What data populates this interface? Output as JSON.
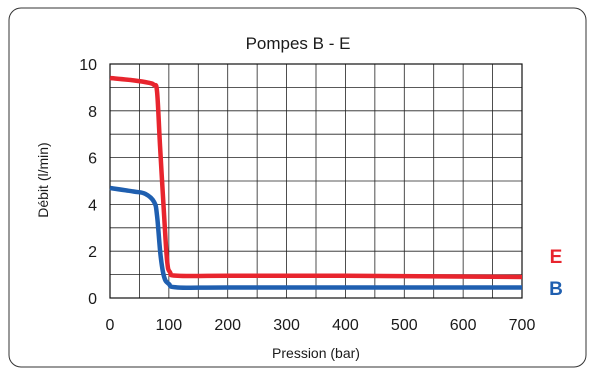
{
  "chart_data": {
    "type": "line",
    "title": "Pompes B - E",
    "xlabel": "Pression (bar)",
    "ylabel": "Débit (l/min)",
    "xlim": [
      0,
      700
    ],
    "ylim": [
      0,
      10
    ],
    "x_ticks": [
      "0",
      "100",
      "200",
      "300",
      "400",
      "500",
      "600",
      "700"
    ],
    "y_ticks": [
      "0",
      "2",
      "4",
      "6",
      "8",
      "10"
    ],
    "grid": true,
    "series": [
      {
        "name": "E",
        "color": "#e8252e",
        "points": [
          [
            0,
            9.4
          ],
          [
            40,
            9.3
          ],
          [
            65,
            9.2
          ],
          [
            75,
            9.1
          ],
          [
            80,
            8.8
          ],
          [
            85,
            6.5
          ],
          [
            92,
            3.5
          ],
          [
            97,
            1.6
          ],
          [
            102,
            1.1
          ],
          [
            115,
            0.95
          ],
          [
            200,
            0.95
          ],
          [
            400,
            0.95
          ],
          [
            700,
            0.9
          ]
        ]
      },
      {
        "name": "B",
        "color": "#1f5fb0",
        "points": [
          [
            0,
            4.7
          ],
          [
            40,
            4.55
          ],
          [
            60,
            4.45
          ],
          [
            75,
            4.1
          ],
          [
            80,
            3.5
          ],
          [
            86,
            1.8
          ],
          [
            92,
            0.9
          ],
          [
            100,
            0.6
          ],
          [
            115,
            0.45
          ],
          [
            200,
            0.45
          ],
          [
            400,
            0.45
          ],
          [
            700,
            0.45
          ]
        ]
      }
    ]
  }
}
